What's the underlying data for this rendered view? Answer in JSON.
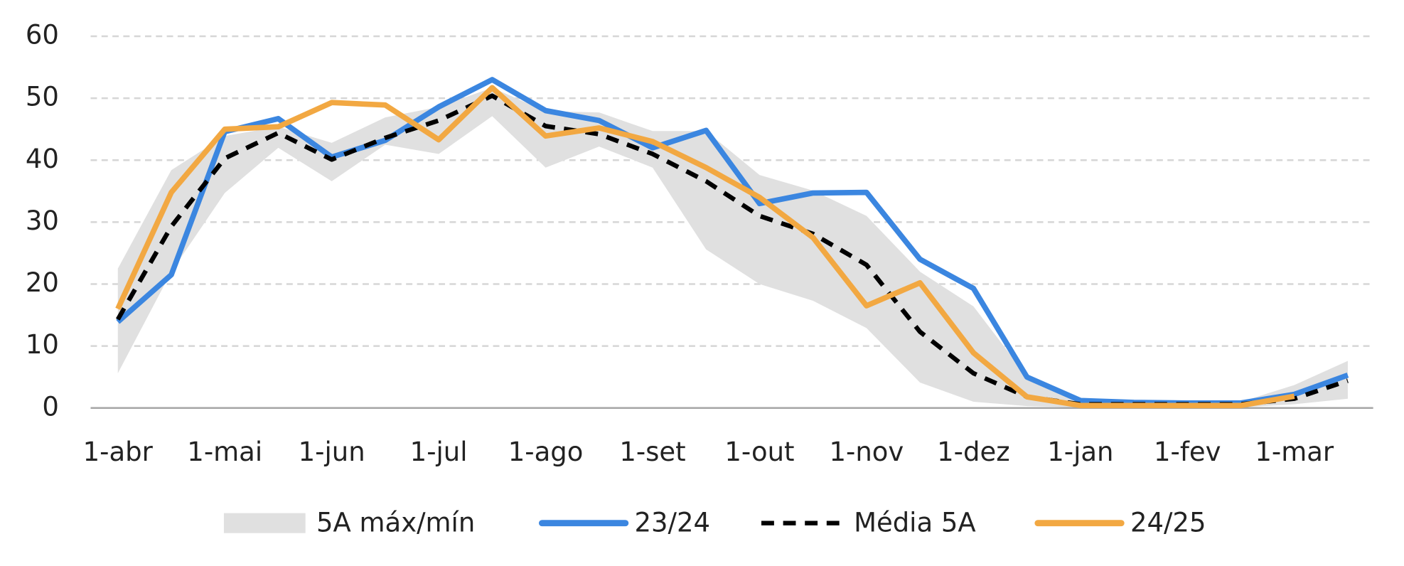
{
  "chart_data": {
    "type": "line",
    "categories": [
      "1-abr",
      null,
      "1-mai",
      null,
      "1-jun",
      null,
      "1-jul",
      null,
      "1-ago",
      null,
      "1-set",
      null,
      "1-out",
      null,
      "1-nov",
      null,
      "1-dez",
      null,
      "1-jan",
      null,
      "1-fev",
      null,
      "1-mar",
      null
    ],
    "series": [
      {
        "name": "5A máx/mín",
        "color": "#e0e0e0",
        "band": true,
        "upper": [
          22.5,
          38.4,
          43.9,
          45.4,
          42.8,
          46.9,
          48.6,
          51.7,
          47.9,
          47.7,
          44.7,
          44.7,
          37.6,
          35.1,
          31,
          22,
          16.4,
          5.1,
          1.5,
          1,
          1,
          1,
          3.7,
          7.6
        ],
        "lower": [
          5.6,
          22,
          34.7,
          42,
          36.6,
          42.5,
          41,
          47.1,
          38.8,
          42.2,
          38.8,
          25.6,
          20,
          17.3,
          12.9,
          4.1,
          1,
          0.3,
          0.1,
          0.1,
          0.1,
          0.1,
          0.6,
          1.5
        ]
      },
      {
        "name": "23/24",
        "color": "#3b86e0",
        "dash": false,
        "values": [
          13.9,
          21.5,
          44.6,
          46.7,
          40.5,
          43.2,
          48.6,
          53,
          48,
          46.4,
          42,
          44.8,
          33,
          34.7,
          34.8,
          24,
          19.3,
          5,
          1.2,
          0.9,
          0.8,
          0.8,
          2.2,
          5.3
        ]
      },
      {
        "name": "Média 5A",
        "color": "#000000",
        "dash": true,
        "values": [
          14.3,
          29.3,
          40.3,
          44.4,
          40.1,
          43.6,
          46.4,
          50.4,
          45.5,
          44.2,
          41,
          36.6,
          31,
          28.1,
          23.1,
          12.3,
          5.6,
          1.8,
          0.6,
          0.6,
          0.6,
          0.6,
          1.5,
          4.4
        ]
      },
      {
        "name": "24/25",
        "color": "#f2a842",
        "dash": false,
        "values": [
          16,
          34.8,
          45,
          45.4,
          49.3,
          48.9,
          43.3,
          51.7,
          43.9,
          45.2,
          43,
          38.8,
          34,
          27.5,
          16.5,
          20.2,
          8.9,
          1.8,
          0.4,
          0.4,
          0.4,
          0.4,
          1.9,
          null
        ]
      }
    ],
    "ylim": [
      0,
      60
    ],
    "yticks": [
      0,
      10,
      20,
      30,
      40,
      50,
      60
    ],
    "grid": true,
    "legend": "bottom"
  }
}
